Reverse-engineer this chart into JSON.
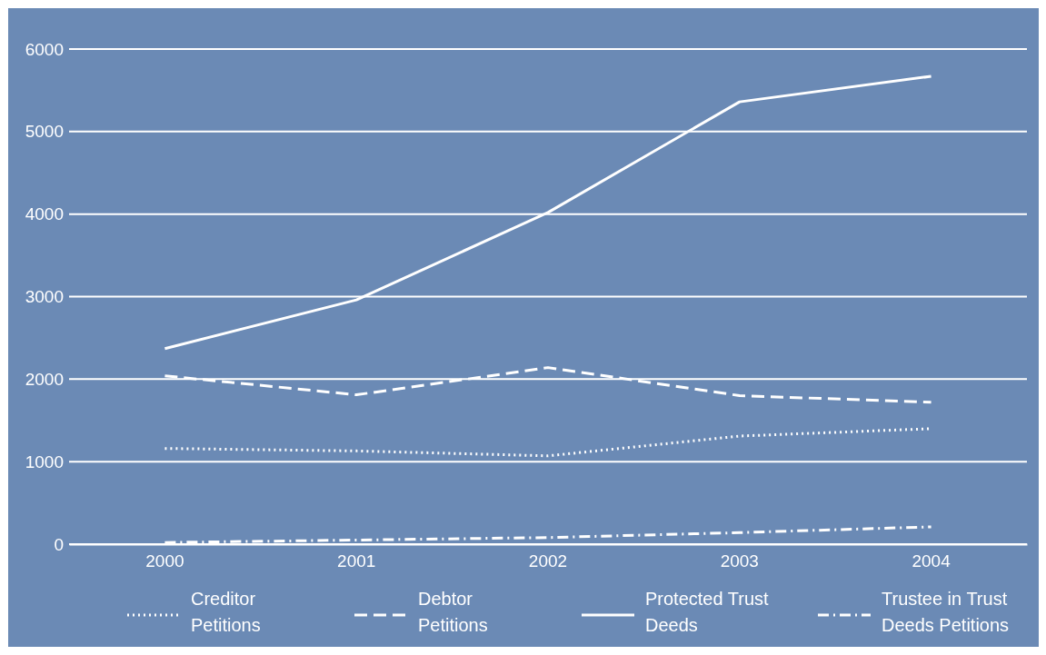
{
  "chart_data": {
    "type": "line",
    "categories": [
      "2000",
      "2001",
      "2002",
      "2003",
      "2004"
    ],
    "series": [
      {
        "name": "Creditor Petitions",
        "color": "#ffffff",
        "line_style": "dotted",
        "values": [
          1160,
          1130,
          1070,
          1310,
          1400
        ]
      },
      {
        "name": "Debtor Petitions",
        "color": "#ffffff",
        "line_style": "dashed",
        "values": [
          2040,
          1810,
          2140,
          1800,
          1720
        ]
      },
      {
        "name": "Protected Trust Deeds",
        "color": "#ffffff",
        "line_style": "solid",
        "values": [
          2370,
          2960,
          4020,
          5360,
          5670
        ]
      },
      {
        "name": "Trustee in Trust Deeds Petitions",
        "color": "#ffffff",
        "line_style": "dashdot",
        "values": [
          20,
          50,
          80,
          140,
          210
        ]
      }
    ],
    "ylim": [
      0,
      6000
    ],
    "yticks": [
      0,
      1000,
      2000,
      3000,
      4000,
      5000,
      6000
    ],
    "grid": "y",
    "legend": "bottom",
    "marker": "none"
  }
}
